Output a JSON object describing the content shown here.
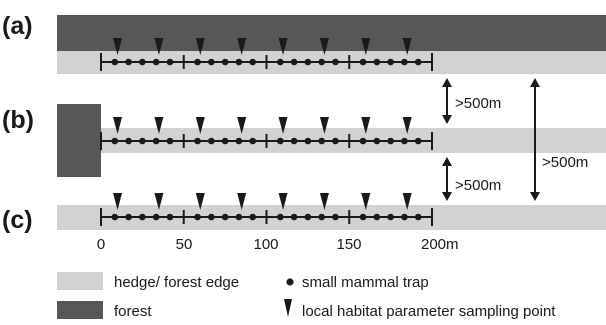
{
  "panels": [
    {
      "label": "(a)",
      "context": "hedge adjacent to forest strip"
    },
    {
      "label": "(b)",
      "context": "hedge starting at forest block"
    },
    {
      "label": "(c)",
      "context": "isolated hedge"
    }
  ],
  "transect": {
    "length_m": 200,
    "segment_length_m": 50,
    "traps_per_segment": 5,
    "sampling_points_m": [
      10,
      35,
      60,
      85,
      110,
      135,
      160,
      185
    ]
  },
  "axis": {
    "ticks": [
      "0",
      "50",
      "100",
      "150",
      "200m"
    ]
  },
  "distances": [
    {
      "label": ">500m",
      "between": "a-b"
    },
    {
      "label": ">500m",
      "between": "b-c"
    },
    {
      "label": ">500m",
      "between": "a-c"
    }
  ],
  "legend": {
    "hedge": "hedge/ forest edge",
    "forest": "forest",
    "trap": "small mammal trap",
    "sampling": "local habitat parameter sampling point"
  },
  "colors": {
    "hedge": "#d2d2d2",
    "forest": "#575757",
    "ink": "#1a1a1a"
  }
}
